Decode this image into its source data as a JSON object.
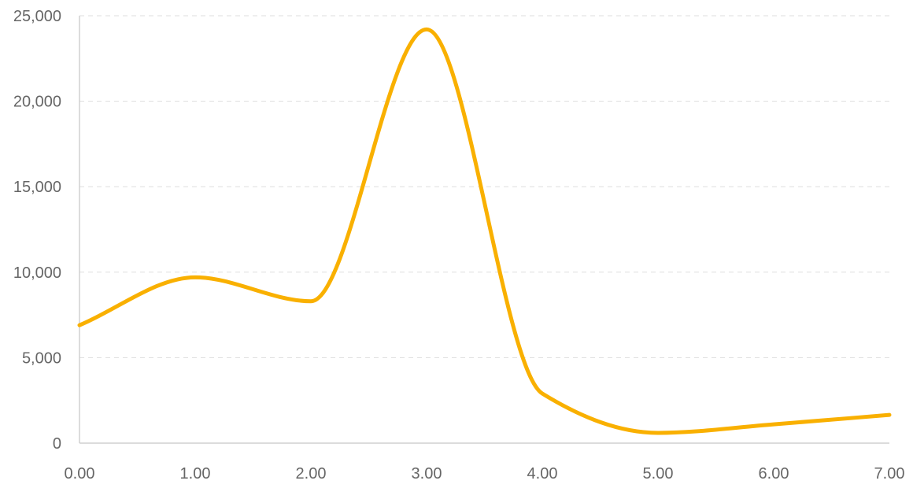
{
  "chart_data": {
    "type": "line",
    "title": "",
    "xlabel": "",
    "ylabel": "",
    "x": [
      0,
      1,
      2,
      3,
      4,
      5,
      6,
      7
    ],
    "series": [
      {
        "values": [
          6900,
          9700,
          8300,
          24200,
          2900,
          600,
          1100,
          1650
        ],
        "color": "#F9B000"
      }
    ],
    "xlim": [
      0,
      7
    ],
    "ylim": [
      0,
      25000
    ],
    "x_ticks": [
      0,
      1,
      2,
      3,
      4,
      5,
      6,
      7
    ],
    "x_tick_labels": [
      "0.00",
      "1.00",
      "2.00",
      "3.00",
      "4.00",
      "5.00",
      "6.00",
      "7.00"
    ],
    "y_ticks": [
      0,
      5000,
      10000,
      15000,
      20000,
      25000
    ],
    "y_tick_labels": [
      "0",
      "5,000",
      "10,000",
      "15,000",
      "20,000",
      "25,000"
    ],
    "grid": true,
    "legend": "none",
    "grid_color": "#DDDDDD",
    "axis_color": "#D0D0D0",
    "tick_label_color": "#666666"
  }
}
